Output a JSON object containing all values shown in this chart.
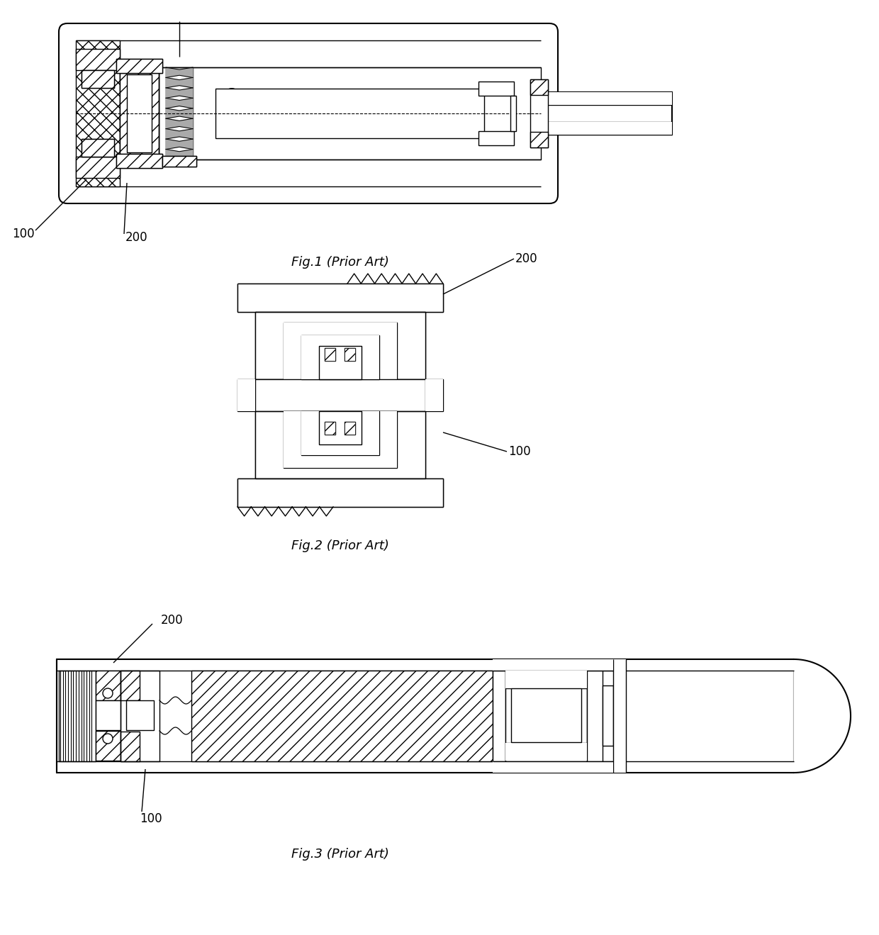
{
  "fig_width": 12.4,
  "fig_height": 13.19,
  "dpi": 100,
  "background": "#ffffff",
  "captions": {
    "fig1": "Fig.1 (Prior Art)",
    "fig2": "Fig.2 (Prior Art)",
    "fig3": "Fig.3 (Prior Art)"
  },
  "labels": {
    "100": "100",
    "200": "200"
  }
}
